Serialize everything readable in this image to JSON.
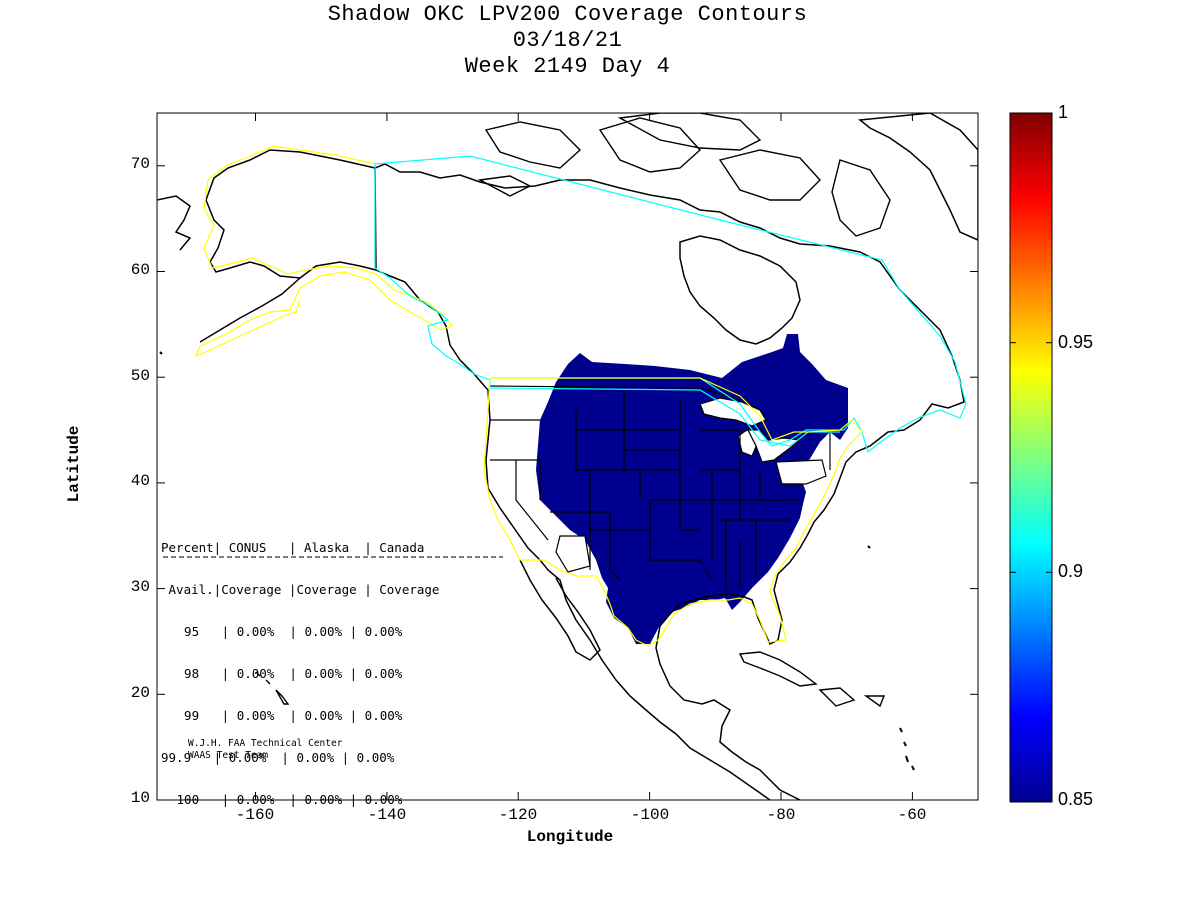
{
  "title": {
    "line1": "Shadow OKC LPV200 Coverage Contours",
    "line2": "03/18/21",
    "line3": "Week 2149 Day 4"
  },
  "axes": {
    "xlabel": "Longitude",
    "ylabel": "Latitude",
    "xlim": [
      -175,
      -50
    ],
    "ylim": [
      10,
      75
    ],
    "xticks": [
      "-160",
      "-140",
      "-120",
      "-100",
      "-80",
      "-60"
    ],
    "yticks": [
      "70",
      "60",
      "50",
      "40",
      "30",
      "20",
      "10"
    ]
  },
  "colorbar": {
    "min": 0.85,
    "max": 1,
    "ticks": [
      "1",
      "0.95",
      "0.9",
      "0.85"
    ],
    "colormap": "jet"
  },
  "stats_table": {
    "header1": "Percent| CONUS   | Alaska  | Canada",
    "header2": " Avail.|Coverage |Coverage | Coverage",
    "divider": "-----------------------------------------",
    "rows": [
      "  95   | 0.00%  | 0.00% | 0.00%",
      "  98   | 0.00%  | 0.00% | 0.00%",
      "  99   | 0.00%  | 0.00% | 0.00%",
      "99.9   | 0.00%  | 0.00% | 0.00%",
      " 100   | 0.00%  | 0.00% | 0.00%"
    ]
  },
  "credit": {
    "line1": "W.J.H. FAA Technical Center",
    "line2": "WAAS Test Team"
  },
  "colors": {
    "coverage_fill": "#00008f",
    "service_boundary_yellow": "#ffff00",
    "region_boundary_cyan": "#00ffff",
    "coastline": "#000000"
  }
}
